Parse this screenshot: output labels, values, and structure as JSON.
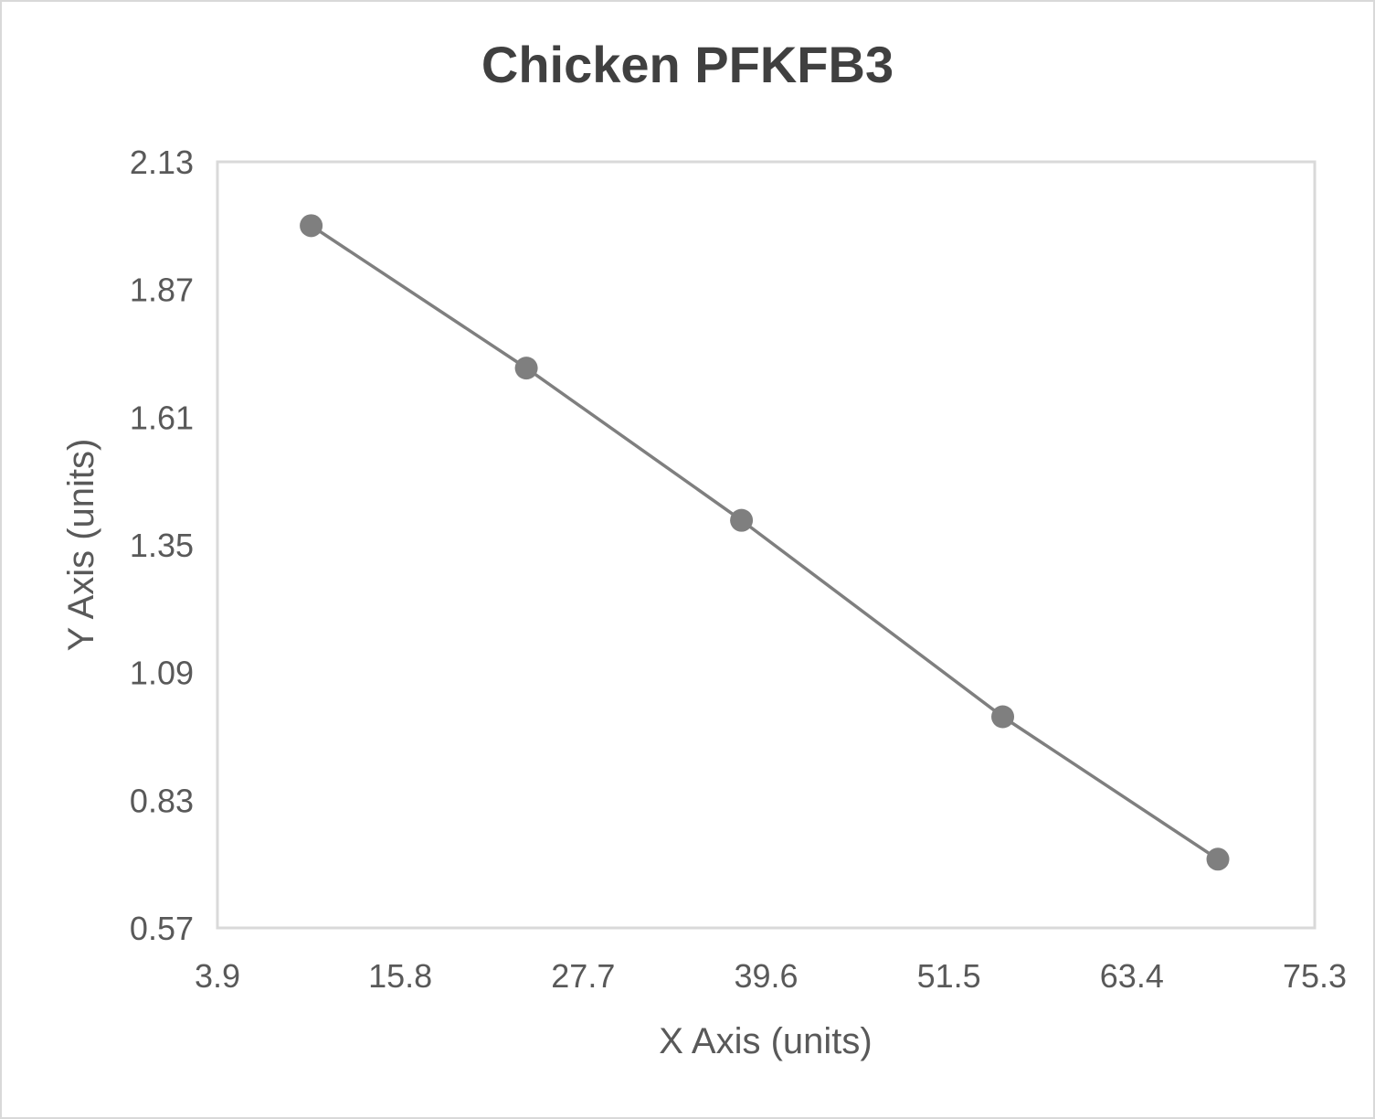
{
  "chart": {
    "title": "Chicken PFKFB3",
    "xlabel": "X Axis (units)",
    "ylabel": "Y Axis (units)",
    "x_ticks": [
      "3.9",
      "15.8",
      "27.7",
      "39.6",
      "51.5",
      "63.4",
      "75.3"
    ],
    "y_ticks": [
      "2.13",
      "1.87",
      "1.61",
      "1.35",
      "1.09",
      "0.83",
      "0.57"
    ],
    "colors": {
      "series": "#7f7f7f",
      "plot_border": "#d9d9d9",
      "text": "#595959",
      "title": "#404040"
    }
  },
  "chart_data": {
    "type": "line",
    "title": "Chicken PFKFB3",
    "xlabel": "X Axis (units)",
    "ylabel": "Y Axis (units)",
    "xlim": [
      3.9,
      75.3
    ],
    "ylim": [
      0.57,
      2.13
    ],
    "x_ticks": [
      3.9,
      15.8,
      27.7,
      39.6,
      51.5,
      63.4,
      75.3
    ],
    "y_ticks": [
      0.57,
      0.83,
      1.09,
      1.35,
      1.61,
      1.87,
      2.13
    ],
    "grid": false,
    "legend": null,
    "series": [
      {
        "name": "Chicken PFKFB3",
        "x": [
          10,
          24,
          38,
          55,
          69
        ],
        "y": [
          2.0,
          1.71,
          1.4,
          1.0,
          0.71
        ],
        "marker": "circle",
        "color": "#7f7f7f"
      }
    ]
  }
}
